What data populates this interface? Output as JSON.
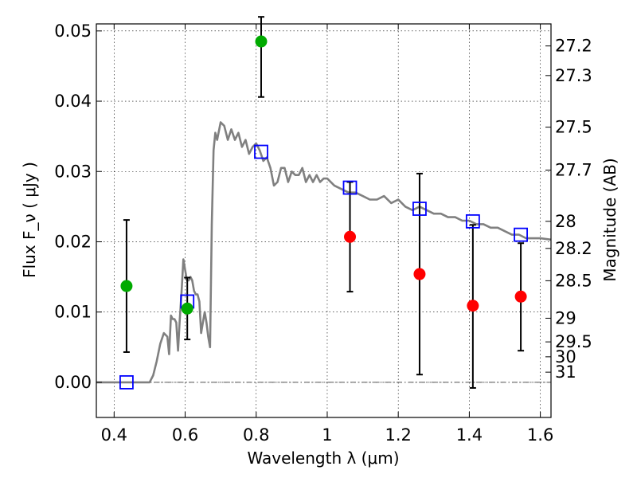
{
  "chart_data": {
    "type": "scatter",
    "xlabel": "Wavelength  λ (μm)",
    "ylabel": "Flux  F_ν  ( μJy )",
    "y2label": "Magnitude (AB)",
    "xlim": [
      0.35,
      1.63
    ],
    "ylim": [
      -0.005,
      0.051
    ],
    "grid": true,
    "x_ticks": [
      {
        "value": 0.4,
        "label": "0.4"
      },
      {
        "value": 0.6,
        "label": "0.6"
      },
      {
        "value": 0.8,
        "label": "0.8"
      },
      {
        "value": 1.0,
        "label": "1"
      },
      {
        "value": 1.2,
        "label": "1.2"
      },
      {
        "value": 1.4,
        "label": "1.4"
      },
      {
        "value": 1.6,
        "label": "1.6"
      }
    ],
    "y_ticks": [
      {
        "value": 0.0,
        "label": "0.00"
      },
      {
        "value": 0.01,
        "label": "0.01"
      },
      {
        "value": 0.02,
        "label": "0.02"
      },
      {
        "value": 0.03,
        "label": "0.03"
      },
      {
        "value": 0.04,
        "label": "0.04"
      },
      {
        "value": 0.05,
        "label": "0.05"
      }
    ],
    "mag_ticks": [
      "27.2",
      "27.3",
      "27.5",
      "27.7",
      "28",
      "28.2",
      "28.5",
      "29",
      "29.5",
      "30",
      "31"
    ],
    "colors": {
      "model": "#808080",
      "model_photometry": "#0000ff",
      "detection": "#00aa00",
      "nondetection": "#ff0000",
      "errorbar": "#000000"
    },
    "model_sed": {
      "name": "",
      "x": [
        0.35,
        0.5,
        0.51,
        0.52,
        0.53,
        0.54,
        0.55,
        0.555,
        0.56,
        0.565,
        0.57,
        0.575,
        0.58,
        0.585,
        0.59,
        0.595,
        0.6,
        0.605,
        0.61,
        0.615,
        0.62,
        0.625,
        0.63,
        0.635,
        0.64,
        0.645,
        0.65,
        0.655,
        0.66,
        0.665,
        0.67,
        0.675,
        0.68,
        0.685,
        0.69,
        0.7,
        0.71,
        0.72,
        0.73,
        0.74,
        0.75,
        0.76,
        0.77,
        0.78,
        0.79,
        0.8,
        0.81,
        0.82,
        0.83,
        0.84,
        0.85,
        0.86,
        0.87,
        0.88,
        0.89,
        0.9,
        0.91,
        0.92,
        0.93,
        0.94,
        0.95,
        0.96,
        0.97,
        0.98,
        0.99,
        1.0,
        1.02,
        1.04,
        1.06,
        1.08,
        1.1,
        1.12,
        1.14,
        1.16,
        1.18,
        1.2,
        1.22,
        1.24,
        1.26,
        1.28,
        1.3,
        1.32,
        1.34,
        1.36,
        1.38,
        1.4,
        1.42,
        1.44,
        1.46,
        1.48,
        1.5,
        1.52,
        1.54,
        1.56,
        1.58,
        1.6,
        1.63
      ],
      "y": [
        0.0,
        0.0,
        0.001,
        0.003,
        0.0055,
        0.007,
        0.0065,
        0.004,
        0.0095,
        0.009,
        0.009,
        0.0085,
        0.0045,
        0.009,
        0.013,
        0.0175,
        0.016,
        0.0145,
        0.0145,
        0.015,
        0.0145,
        0.013,
        0.0125,
        0.0125,
        0.0115,
        0.007,
        0.0085,
        0.01,
        0.0085,
        0.0065,
        0.005,
        0.0225,
        0.033,
        0.0355,
        0.0345,
        0.037,
        0.0365,
        0.0345,
        0.036,
        0.0345,
        0.0355,
        0.0335,
        0.0345,
        0.0325,
        0.0335,
        0.034,
        0.033,
        0.0315,
        0.032,
        0.0305,
        0.028,
        0.0285,
        0.0305,
        0.0305,
        0.0285,
        0.03,
        0.0295,
        0.0295,
        0.0305,
        0.0285,
        0.0295,
        0.0285,
        0.0295,
        0.0285,
        0.029,
        0.029,
        0.028,
        0.0275,
        0.027,
        0.027,
        0.0265,
        0.026,
        0.026,
        0.0265,
        0.0255,
        0.026,
        0.025,
        0.0245,
        0.025,
        0.0245,
        0.024,
        0.024,
        0.0235,
        0.0235,
        0.023,
        0.023,
        0.0225,
        0.0225,
        0.022,
        0.022,
        0.0215,
        0.021,
        0.021,
        0.0205,
        0.0205,
        0.0205,
        0.0203
      ]
    },
    "model_photometry": {
      "name": "",
      "x": [
        0.435,
        0.606,
        0.814,
        1.064,
        1.26,
        1.41,
        1.545
      ],
      "y": [
        0.0,
        0.0115,
        0.0328,
        0.0277,
        0.0247,
        0.0229,
        0.021
      ]
    },
    "detections": {
      "name": "",
      "x": [
        0.435,
        0.606,
        0.814
      ],
      "y": [
        0.0137,
        0.0105,
        0.0485
      ],
      "yerr_low": [
        0.0043,
        0.0061,
        0.0406
      ],
      "yerr_high": [
        0.0231,
        0.0149,
        0.052
      ]
    },
    "nondetections": {
      "name": "",
      "x": [
        1.064,
        1.26,
        1.41,
        1.545
      ],
      "y": [
        0.0207,
        0.0154,
        0.0109,
        0.0122
      ],
      "yerr_low": [
        0.0129,
        0.0011,
        -0.0008,
        0.0045
      ],
      "yerr_high": [
        0.0285,
        0.0297,
        0.0224,
        0.0198
      ]
    }
  }
}
